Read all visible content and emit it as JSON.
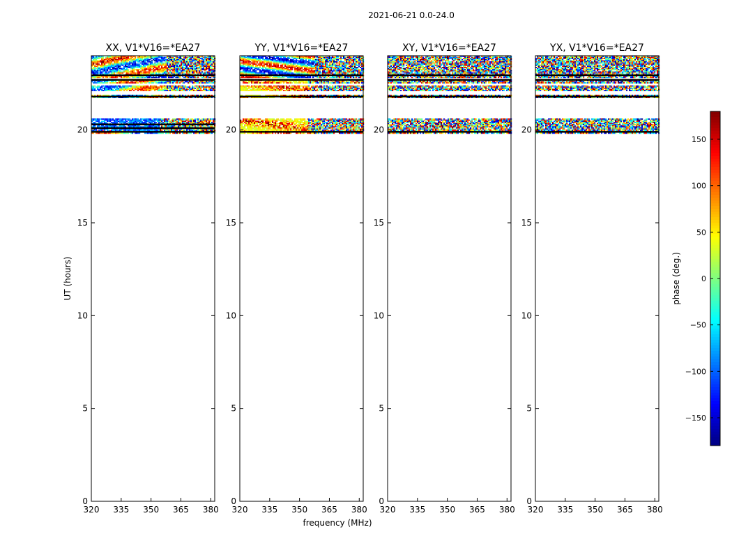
{
  "figure_title": "2021-06-21 0.0-24.0",
  "chart_data": {
    "type": "heatmap",
    "x_label": "frequency (MHz)",
    "y_label": "UT (hours)",
    "x_range": [
      320,
      382
    ],
    "y_range": [
      0,
      24
    ],
    "x_ticks": [
      320,
      335,
      350,
      365,
      380
    ],
    "y_ticks": [
      0,
      5,
      10,
      15,
      20
    ],
    "colorbar": {
      "label": "phase (deg.)",
      "range": [
        -180,
        180
      ],
      "ticks": [
        150,
        100,
        50,
        0,
        -50,
        -100,
        -150
      ],
      "tick_labels": [
        "150",
        "100",
        "50",
        "0",
        "−50",
        "−100",
        "−150"
      ],
      "colormap": "jet",
      "colors": [
        "#00007f",
        "#0000ff",
        "#007fff",
        "#00ffff",
        "#7fff7f",
        "#ffff00",
        "#ff7f00",
        "#ff0000",
        "#7f0000"
      ]
    },
    "panels": [
      {
        "title": "XX, V1*V16=*EA27",
        "mode": "xx",
        "data_bands": [
          [
            19.85,
            19.98
          ],
          [
            20.0,
            20.62
          ],
          [
            21.75,
            21.9
          ],
          [
            22.15,
            22.4
          ],
          [
            22.55,
            22.75
          ],
          [
            22.85,
            24.0
          ]
        ],
        "black_lines": [
          19.9,
          20.1,
          20.3,
          21.8,
          22.7,
          22.95
        ]
      },
      {
        "title": "YY, V1*V16=*EA27",
        "mode": "yy",
        "data_bands": [
          [
            19.85,
            19.98
          ],
          [
            20.0,
            20.62
          ],
          [
            21.75,
            21.9
          ],
          [
            22.15,
            22.4
          ],
          [
            22.55,
            22.75
          ],
          [
            22.85,
            24.0
          ]
        ],
        "black_lines": [
          19.9,
          21.8,
          22.7,
          22.95
        ]
      },
      {
        "title": "XY, V1*V16=*EA27",
        "mode": "cross",
        "data_bands": [
          [
            19.85,
            19.98
          ],
          [
            20.0,
            20.62
          ],
          [
            21.75,
            21.9
          ],
          [
            22.15,
            22.4
          ],
          [
            22.55,
            22.75
          ],
          [
            22.85,
            24.0
          ]
        ],
        "black_lines": [
          19.9,
          21.8,
          22.7,
          22.95
        ]
      },
      {
        "title": "YX, V1*V16=*EA27",
        "mode": "cross",
        "data_bands": [
          [
            19.85,
            19.98
          ],
          [
            20.0,
            20.62
          ],
          [
            21.75,
            21.9
          ],
          [
            22.15,
            22.4
          ],
          [
            22.55,
            22.75
          ],
          [
            22.85,
            24.0
          ]
        ],
        "black_lines": [
          19.9,
          21.8,
          22.7,
          22.95
        ]
      }
    ]
  }
}
